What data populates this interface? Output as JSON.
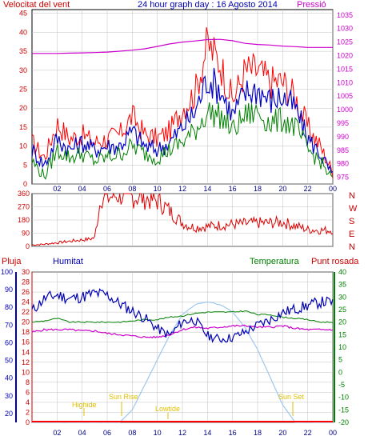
{
  "header": {
    "wind_title": "Velocitat del vent",
    "main_title": "24 hour graph day : 16 Agosto 2014",
    "pressure_title": "Pressió"
  },
  "panel2": {
    "dirs": [
      "N",
      "W",
      "S",
      "E",
      "N"
    ]
  },
  "panel3": {
    "rain_title": "Pluja",
    "humidity_title": "Humitat",
    "temp_title": "Temperatura",
    "dew_title": "Punt rosada",
    "annotations": [
      "Highide",
      "Sun Rise",
      "Lowtide",
      "Sun Set"
    ]
  },
  "colors": {
    "wind_gust": "#ff0000",
    "wind_avg": "#0000c8",
    "wind_low": "#008000",
    "pressure": "#cc00cc",
    "direction": "#dd0000",
    "humidity": "#0000b4",
    "temperature": "#008000",
    "dewpoint": "#cc00cc",
    "sun": "#9ec8ee",
    "rain": "#ff0000",
    "annot": "#e0c000",
    "grid": "#c0c0c0"
  },
  "chart_data": [
    {
      "type": "line",
      "x_ticks": [
        "02",
        "04",
        "06",
        "08",
        "10",
        "12",
        "14",
        "16",
        "18",
        "20",
        "22",
        "00"
      ],
      "y_left_ticks": [
        0,
        5,
        10,
        15,
        20,
        25,
        30,
        35,
        40,
        45
      ],
      "y_right_ticks": [
        975,
        980,
        985,
        990,
        995,
        1000,
        1005,
        1010,
        1015,
        1020,
        1025,
        1030,
        1035
      ],
      "ylim_left": [
        0,
        46
      ],
      "ylim_right": [
        972.5,
        1037
      ],
      "x_hours": [
        0,
        1,
        2,
        3,
        4,
        5,
        6,
        7,
        8,
        9,
        10,
        11,
        12,
        13,
        14,
        15,
        16,
        17,
        18,
        19,
        20,
        21,
        22,
        23,
        24
      ],
      "series": [
        {
          "values": [
            11,
            7,
            16,
            12,
            13,
            11,
            12,
            13,
            18,
            13,
            12,
            14,
            20,
            24,
            37,
            32,
            22,
            30,
            30,
            27,
            27,
            23,
            15,
            10,
            3
          ]
        },
        {
          "values": [
            9,
            5,
            12,
            9,
            11,
            9,
            10,
            10,
            14,
            10,
            9,
            11,
            15,
            19,
            28,
            25,
            18,
            24,
            25,
            22,
            23,
            20,
            12,
            8,
            2
          ]
        },
        {
          "values": [
            6,
            2,
            9,
            7,
            8,
            6,
            7,
            8,
            10,
            8,
            7,
            9,
            11,
            14,
            19,
            18,
            14,
            18,
            19,
            16,
            17,
            15,
            9,
            6,
            1
          ]
        },
        {
          "values": [
            1020.8,
            1020.8,
            1020.8,
            1020.9,
            1021.0,
            1021.1,
            1021.3,
            1021.6,
            1022.0,
            1022.5,
            1023.4,
            1024.3,
            1025.0,
            1025.4,
            1025.9,
            1026.0,
            1025.5,
            1024.5,
            1024.1,
            1023.9,
            1023.5,
            1023.3,
            1023.0,
            1023.0,
            1023.0
          ]
        }
      ]
    },
    {
      "type": "line",
      "y_left_ticks": [
        0,
        90,
        180,
        270,
        360
      ],
      "ylim": [
        0,
        360
      ],
      "x_hours": [
        0,
        0.5,
        1,
        1.5,
        2,
        2.5,
        3,
        3.5,
        4,
        4.5,
        5,
        5.5,
        6,
        6.5,
        7,
        7.5,
        8,
        8.5,
        9,
        9.5,
        10,
        10.5,
        11,
        11.5,
        12,
        12.5,
        13,
        14,
        15,
        16,
        17,
        18,
        19,
        20,
        21,
        22,
        23,
        24
      ],
      "series": [
        {
          "values": [
            10,
            12,
            15,
            20,
            25,
            30,
            35,
            40,
            45,
            48,
            60,
            340,
            330,
            345,
            350,
            345,
            340,
            335,
            330,
            320,
            310,
            280,
            240,
            200,
            160,
            140,
            130,
            135,
            145,
            150,
            155,
            160,
            160,
            165,
            140,
            115,
            110,
            110
          ]
        }
      ]
    },
    {
      "type": "line",
      "x_ticks": [
        "02",
        "04",
        "06",
        "08",
        "10",
        "12",
        "14",
        "16",
        "18",
        "20",
        "22",
        "00"
      ],
      "y_left_ticks": [
        20,
        30,
        40,
        50,
        60,
        70,
        80,
        90,
        100
      ],
      "y_rain_ticks": [
        0,
        2,
        4,
        6,
        8,
        10,
        12,
        14,
        16,
        18,
        20,
        22,
        24,
        26,
        28,
        30
      ],
      "y_right_ticks": [
        -20,
        -15,
        -10,
        -5,
        0,
        5,
        10,
        15,
        20,
        25,
        30,
        35,
        40
      ],
      "ylim_left": [
        15,
        100
      ],
      "ylim_right": [
        -20,
        40
      ],
      "x_hours": [
        0,
        1,
        2,
        3,
        4,
        5,
        6,
        7,
        8,
        9,
        10,
        11,
        12,
        13,
        14,
        15,
        16,
        17,
        18,
        19,
        20,
        21,
        22,
        23,
        24
      ],
      "series": [
        {
          "values": [
            78,
            85,
            87,
            85,
            86,
            88,
            87,
            82,
            78,
            74,
            68,
            64,
            72,
            73,
            64,
            62,
            63,
            66,
            70,
            73,
            77,
            79,
            81,
            83,
            83
          ]
        },
        {
          "values": [
            20.0,
            20.5,
            21.5,
            20.0,
            20.0,
            20.0,
            20.0,
            20.0,
            20.5,
            21.0,
            21.0,
            22.0,
            22.5,
            23.5,
            24.0,
            24.0,
            24.0,
            24.5,
            23.0,
            23.0,
            22.0,
            21.5,
            21.0,
            20.0,
            20.0
          ]
        },
        {
          "values": [
            16.0,
            17.0,
            17.0,
            17.0,
            16.5,
            16.5,
            15.5,
            15.0,
            14.5,
            14.0,
            14.0,
            15.0,
            17.0,
            18.0,
            17.5,
            18.0,
            18.5,
            18.5,
            18.0,
            18.0,
            18.5,
            17.5,
            17.0,
            17.0,
            17.0
          ]
        },
        {
          "values": [
            -20,
            -20,
            -20,
            -20,
            -20,
            -20,
            -20,
            -20,
            -15,
            -5,
            5,
            15,
            23,
            27,
            28,
            27,
            24,
            18,
            9,
            -2,
            -13,
            -20,
            -20,
            -20,
            -20
          ]
        }
      ]
    }
  ]
}
